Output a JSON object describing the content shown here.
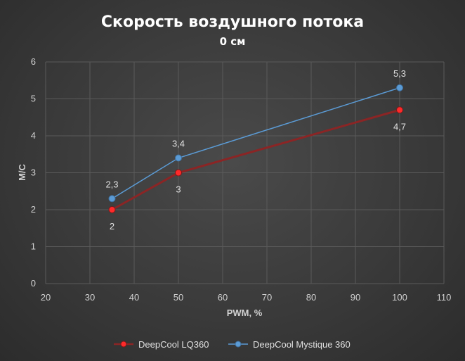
{
  "chart_data": {
    "type": "line",
    "title": "Скорость воздушного потока",
    "subtitle": "0 см",
    "xlabel": "PWM, %",
    "ylabel": "М/С",
    "xlim": [
      20,
      110
    ],
    "ylim": [
      0,
      6
    ],
    "xticks": [
      "20",
      "30",
      "40",
      "50",
      "60",
      "70",
      "80",
      "90",
      "100",
      "110"
    ],
    "yticks": [
      "0",
      "1",
      "2",
      "3",
      "4",
      "5",
      "6"
    ],
    "grid": true,
    "legend_position": "bottom",
    "series": [
      {
        "name": "DeepCool LQ360",
        "color": "#ff2a2a",
        "line_color": "#8b2525",
        "x": [
          35,
          50,
          100
        ],
        "y": [
          2,
          3,
          4.7
        ],
        "labels": [
          "2",
          "3",
          "4,7"
        ],
        "label_position": "below"
      },
      {
        "name": "DeepCool Mystique 360",
        "color": "#5b9bd5",
        "line_color": "#5b9bd5",
        "x": [
          35,
          50,
          100
        ],
        "y": [
          2.3,
          3.4,
          5.3
        ],
        "labels": [
          "2,3",
          "3,4",
          "5,3"
        ],
        "label_position": "above"
      }
    ]
  }
}
